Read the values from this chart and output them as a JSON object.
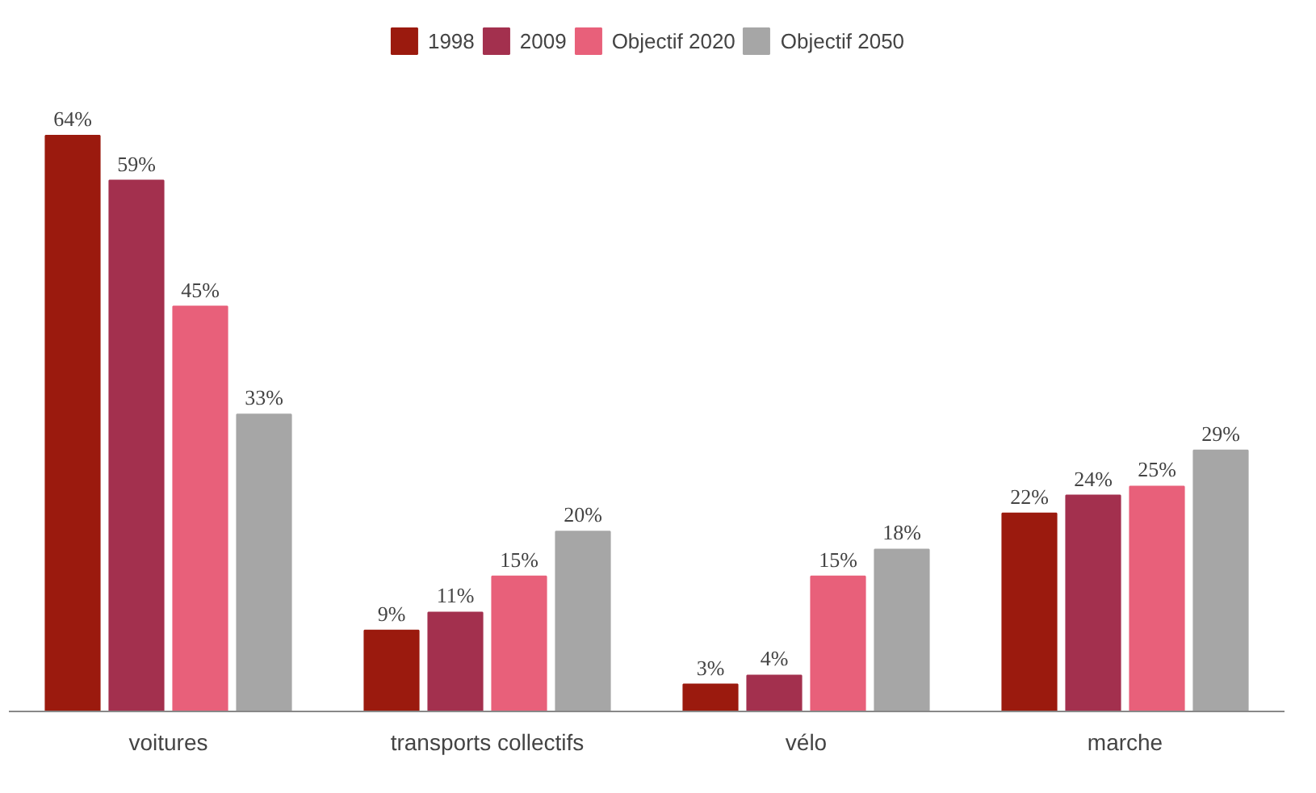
{
  "chart_data": {
    "type": "bar",
    "categories": [
      "voitures",
      "transports collectifs",
      "vélo",
      "marche"
    ],
    "series": [
      {
        "name": "1998",
        "color": "#9b1a0e",
        "values": [
          64,
          9,
          3,
          22
        ],
        "value_labels": [
          "64%",
          "9%",
          "3%",
          "22%"
        ]
      },
      {
        "name": "2009",
        "color": "#a3304e",
        "values": [
          59,
          11,
          4,
          24
        ],
        "value_labels": [
          "59%",
          "11%",
          "4%",
          "24%"
        ]
      },
      {
        "name": "Objectif 2020",
        "color": "#e8607a",
        "values": [
          45,
          15,
          15,
          25
        ],
        "value_labels": [
          "45%",
          "15%",
          "15%",
          "25%"
        ]
      },
      {
        "name": "Objectif 2050",
        "color": "#a6a6a6",
        "values": [
          33,
          20,
          18,
          29
        ],
        "value_labels": [
          "33%",
          "20%",
          "18%",
          "29%"
        ]
      }
    ],
    "legend": "top"
  }
}
